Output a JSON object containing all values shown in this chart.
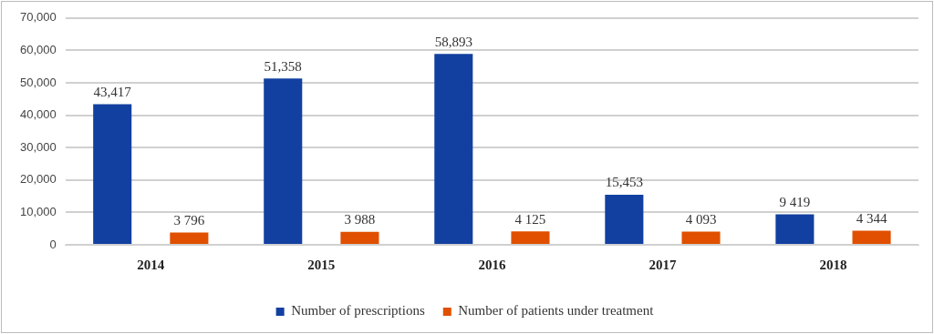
{
  "chart_data": {
    "type": "bar",
    "categories": [
      "2014",
      "2015",
      "2016",
      "2017",
      "2018"
    ],
    "series": [
      {
        "name": "Number of prescriptions",
        "color": "#1240a0",
        "values": [
          43417,
          51358,
          58893,
          15453,
          9419
        ],
        "value_labels": [
          "43,417",
          "51,358",
          "58,893",
          "15,453",
          "9 419"
        ]
      },
      {
        "name": "Number of patients under treatment",
        "color": "#e05000",
        "values": [
          3796,
          3988,
          4125,
          4093,
          4344
        ],
        "value_labels": [
          "3 796",
          "3 988",
          "4 125",
          "4 093",
          "4 344"
        ]
      }
    ],
    "ylim": [
      0,
      70000
    ],
    "yticks": [
      {
        "value": 0,
        "label": "0"
      },
      {
        "value": 10000,
        "label": "10,000"
      },
      {
        "value": 20000,
        "label": "20,000"
      },
      {
        "value": 30000,
        "label": "30,000"
      },
      {
        "value": 40000,
        "label": "40,000"
      },
      {
        "value": 50000,
        "label": "50,000"
      },
      {
        "value": 60000,
        "label": "60,000"
      },
      {
        "value": 70000,
        "label": "70,000"
      }
    ],
    "grid": "y",
    "legend": "bottom"
  }
}
